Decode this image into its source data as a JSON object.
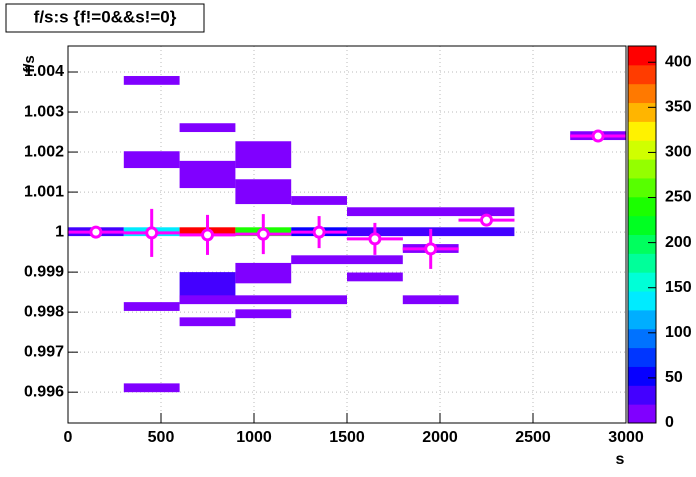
{
  "chart_data": {
    "type": "heatmap",
    "title": "f/s:s {f!=0&&s!=0}",
    "x_label": "s",
    "y_label": "f/s",
    "xlim": [
      0,
      3000
    ],
    "xticks": [
      0,
      500,
      1000,
      1500,
      2000,
      2500,
      3000
    ],
    "ylim": [
      0.99523,
      1.00465
    ],
    "yticks": [
      0.996,
      0.997,
      0.998,
      0.999,
      1,
      1.001,
      1.002,
      1.003,
      1.004
    ],
    "zlim": [
      0,
      418
    ],
    "zticks": [
      0,
      50,
      100,
      150,
      200,
      250,
      300,
      350,
      400
    ],
    "grid": true,
    "cells": [
      {
        "x": [
          0,
          300
        ],
        "y": [
          0.9999,
          1.00012
        ],
        "value": 30
      },
      {
        "x": [
          300,
          600
        ],
        "y": [
          1.00368,
          1.0039
        ],
        "value": 20
      },
      {
        "x": [
          300,
          600
        ],
        "y": [
          1.0016,
          1.00202
        ],
        "value": 20
      },
      {
        "x": [
          300,
          600
        ],
        "y": [
          0.9999,
          1.00012
        ],
        "value": 140
      },
      {
        "x": [
          300,
          600
        ],
        "y": [
          0.99803,
          0.99825
        ],
        "value": 20
      },
      {
        "x": [
          300,
          600
        ],
        "y": [
          0.996,
          0.99622
        ],
        "value": 20
      },
      {
        "x": [
          600,
          900
        ],
        "y": [
          1.0025,
          1.00272
        ],
        "value": 20
      },
      {
        "x": [
          600,
          900
        ],
        "y": [
          1.0011,
          1.00178
        ],
        "value": 20
      },
      {
        "x": [
          600,
          900
        ],
        "y": [
          0.9999,
          1.00012
        ],
        "value": 410
      },
      {
        "x": [
          600,
          900
        ],
        "y": [
          0.99825,
          0.999
        ],
        "value": 25
      },
      {
        "x": [
          600,
          900
        ],
        "y": [
          0.99765,
          0.99787
        ],
        "value": 20
      },
      {
        "x": [
          900,
          1200
        ],
        "y": [
          1.0016,
          1.00227
        ],
        "value": 20
      },
      {
        "x": [
          900,
          1200
        ],
        "y": [
          1.0007,
          1.00132
        ],
        "value": 20
      },
      {
        "x": [
          900,
          1200
        ],
        "y": [
          0.9999,
          1.00012
        ],
        "value": 240
      },
      {
        "x": [
          900,
          1200
        ],
        "y": [
          0.99872,
          0.99923
        ],
        "value": 20
      },
      {
        "x": [
          900,
          1200
        ],
        "y": [
          0.99785,
          0.99807
        ],
        "value": 20
      },
      {
        "x": [
          600,
          1500
        ],
        "y": [
          0.9982,
          0.99842
        ],
        "value": 20
      },
      {
        "x": [
          1200,
          1500
        ],
        "y": [
          1.00068,
          1.0009
        ],
        "value": 20
      },
      {
        "x": [
          1200,
          1500
        ],
        "y": [
          0.9999,
          1.00012
        ],
        "value": 60
      },
      {
        "x": [
          1200,
          1800
        ],
        "y": [
          0.9992,
          0.99942
        ],
        "value": 20
      },
      {
        "x": [
          1500,
          2400
        ],
        "y": [
          1.0004,
          1.00062
        ],
        "value": 20
      },
      {
        "x": [
          1500,
          2400
        ],
        "y": [
          0.9999,
          1.00012
        ],
        "value": 30
      },
      {
        "x": [
          1500,
          1800
        ],
        "y": [
          0.99877,
          0.99899
        ],
        "value": 20
      },
      {
        "x": [
          1800,
          2100
        ],
        "y": [
          0.9982,
          0.99842
        ],
        "value": 20
      },
      {
        "x": [
          1800,
          2100
        ],
        "y": [
          0.99948,
          0.9997
        ],
        "value": 20
      },
      {
        "x": [
          2700,
          3000
        ],
        "y": [
          1.0023,
          1.00252
        ],
        "value": 20
      }
    ],
    "profile": {
      "color": "#ff00ff",
      "x": [
        150,
        450,
        750,
        1050,
        1350,
        1650,
        1950,
        2250,
        2850
      ],
      "values": [
        1.0,
        0.99998,
        0.99993,
        0.99995,
        1.0,
        0.99983,
        0.99958,
        1.0003,
        1.0024
      ],
      "errors": [
        3e-05,
        0.0006,
        0.0005,
        0.0005,
        0.0004,
        0.0004,
        0.0005,
        0.0001,
        0.0001
      ]
    }
  }
}
